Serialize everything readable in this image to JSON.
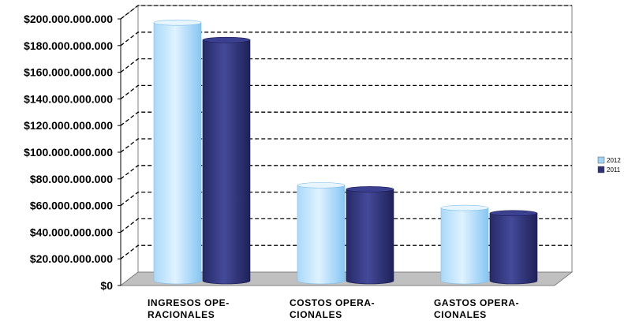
{
  "chart_data": {
    "type": "bar",
    "categories": [
      [
        "INGRESOS OPE-",
        "RACIONALES"
      ],
      [
        "COSTOS OPERA-",
        "CIONALES"
      ],
      [
        "GASTOS OPERA-",
        "CIONALES"
      ]
    ],
    "series": [
      {
        "name": "2012",
        "color": "#9fd4f8",
        "values": [
          199000000000,
          77000000000,
          60000000000
        ]
      },
      {
        "name": "2011",
        "color": "#2e3275",
        "values": [
          186000000000,
          74000000000,
          56000000000
        ]
      }
    ],
    "ylim": [
      0,
      200000000000
    ],
    "yticks": [
      "$0",
      "$20.000.000.000",
      "$40.000.000.000",
      "$60.000.000.000",
      "$80.000.000.000",
      "$100.000.000.000",
      "$120.000.000.000",
      "$140.000.000.000",
      "$160.000.000.000",
      "$180.000.000.000",
      "$200.000.000.000"
    ],
    "grid": true,
    "legend_position": "right",
    "three_d": true
  }
}
